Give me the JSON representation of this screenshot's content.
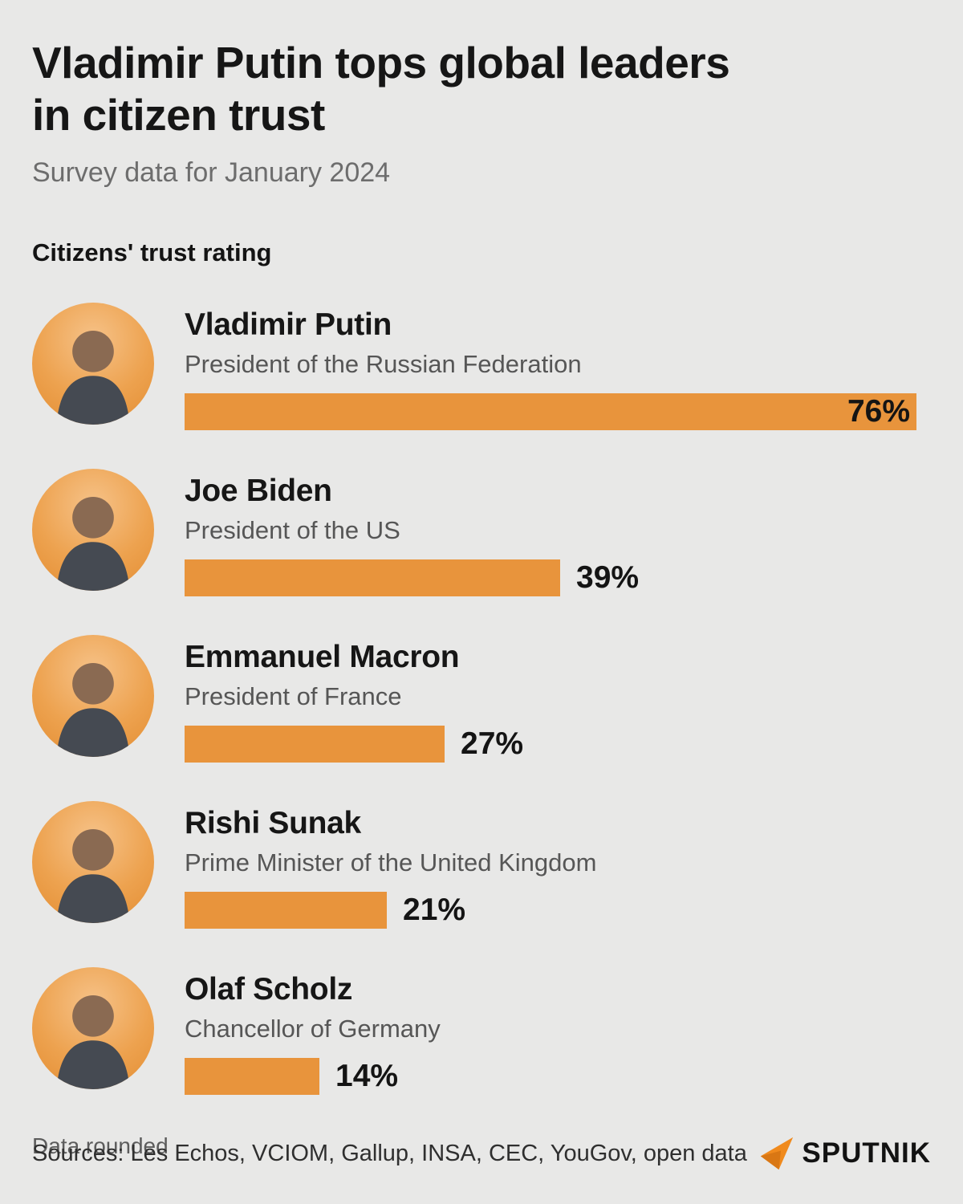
{
  "header": {
    "title_line1": "Vladimir Putin tops global leaders",
    "title_line2": "in citizen trust",
    "subtitle": "Survey data for January 2024",
    "section_label": "Citizens' trust rating"
  },
  "chart_data": {
    "type": "bar",
    "orientation": "horizontal",
    "title": "Citizens' trust rating",
    "unit": "%",
    "xlim": [
      0,
      80
    ],
    "bar_color": "#e8943c",
    "leaders": [
      {
        "name": "Vladimir Putin",
        "title": "President of the Russian Federation",
        "value": 76,
        "label": "76%"
      },
      {
        "name": "Joe Biden",
        "title": "President of the US",
        "value": 39,
        "label": "39%"
      },
      {
        "name": "Emmanuel Macron",
        "title": "President of France",
        "value": 27,
        "label": "27%"
      },
      {
        "name": "Rishi Sunak",
        "title": "Prime Minister of the United Kingdom",
        "value": 21,
        "label": "21%"
      },
      {
        "name": "Olaf Scholz",
        "title": "Chancellor of Germany",
        "value": 14,
        "label": "14%"
      }
    ]
  },
  "footer": {
    "note": "Data rounded",
    "sources": "Sources: Les Echos, VCIOM, Gallup, INSA, CEC, YouGov, open data",
    "brand": "SPUTNIK",
    "brand_icon": "sputnik-arrow-icon",
    "brand_color": "#f08a1d"
  }
}
